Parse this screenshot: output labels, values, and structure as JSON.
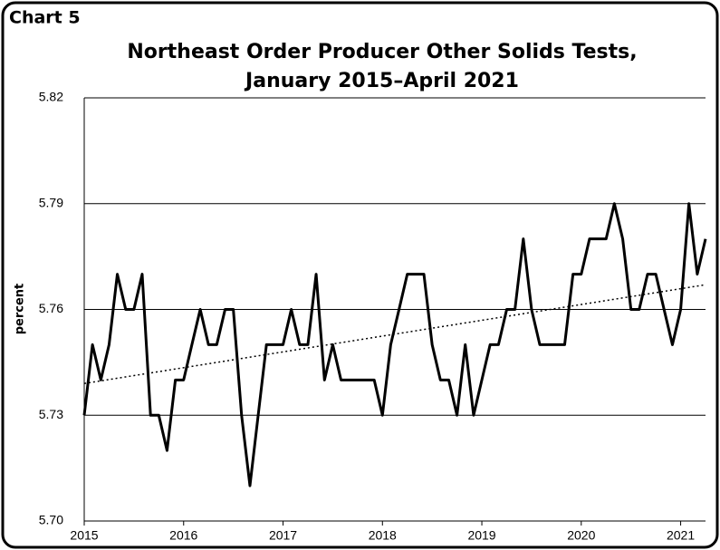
{
  "chart_data": {
    "type": "line",
    "label": "Chart 5",
    "title": [
      "Northeast Order Producer Other Solids Tests,",
      "January 2015–April 2021"
    ],
    "ylabel": "percent",
    "x": [
      2015,
      2015.083,
      2015.167,
      2015.25,
      2015.333,
      2015.417,
      2015.5,
      2015.583,
      2015.667,
      2015.75,
      2015.833,
      2015.917,
      2016,
      2016.083,
      2016.167,
      2016.25,
      2016.333,
      2016.417,
      2016.5,
      2016.583,
      2016.667,
      2016.75,
      2016.833,
      2016.917,
      2017,
      2017.083,
      2017.167,
      2017.25,
      2017.333,
      2017.417,
      2017.5,
      2017.583,
      2017.667,
      2017.75,
      2017.833,
      2017.917,
      2018,
      2018.083,
      2018.167,
      2018.25,
      2018.333,
      2018.417,
      2018.5,
      2018.583,
      2018.667,
      2018.75,
      2018.833,
      2018.917,
      2019,
      2019.083,
      2019.167,
      2019.25,
      2019.333,
      2019.417,
      2019.5,
      2019.583,
      2019.667,
      2019.75,
      2019.833,
      2019.917,
      2020,
      2020.083,
      2020.167,
      2020.25,
      2020.333,
      2020.417,
      2020.5,
      2020.583,
      2020.667,
      2020.75,
      2020.833,
      2020.917,
      2021,
      2021.083,
      2021.167,
      2021.25
    ],
    "series": [
      {
        "color": "#000000",
        "values": [
          5.73,
          5.75,
          5.74,
          5.75,
          5.77,
          5.76,
          5.76,
          5.77,
          5.73,
          5.73,
          5.72,
          5.74,
          5.74,
          5.75,
          5.76,
          5.75,
          5.75,
          5.76,
          5.76,
          5.73,
          5.71,
          5.73,
          5.75,
          5.75,
          5.75,
          5.76,
          5.75,
          5.75,
          5.77,
          5.74,
          5.75,
          5.74,
          5.74,
          5.74,
          5.74,
          5.74,
          5.73,
          5.75,
          5.76,
          5.77,
          5.77,
          5.77,
          5.75,
          5.74,
          5.74,
          5.73,
          5.75,
          5.73,
          5.74,
          5.75,
          5.75,
          5.76,
          5.76,
          5.78,
          5.76,
          5.75,
          5.75,
          5.75,
          5.75,
          5.77,
          5.77,
          5.78,
          5.78,
          5.78,
          5.79,
          5.78,
          5.76,
          5.76,
          5.77,
          5.77,
          5.76,
          5.75,
          5.76,
          5.79,
          5.77,
          5.78
        ]
      }
    ],
    "trendline": {
      "x": [
        2015,
        2021.25
      ],
      "values": [
        5.739,
        5.767
      ]
    },
    "xlim": [
      2015,
      2021.25
    ],
    "xticks": [
      2015,
      2016,
      2017,
      2018,
      2019,
      2020,
      2021
    ],
    "ylim": [
      5.7,
      5.82
    ],
    "yticks": [
      {
        "value": 5.7,
        "label": "5.70"
      },
      5.73,
      5.76,
      5.79,
      5.82
    ],
    "grid": true
  }
}
